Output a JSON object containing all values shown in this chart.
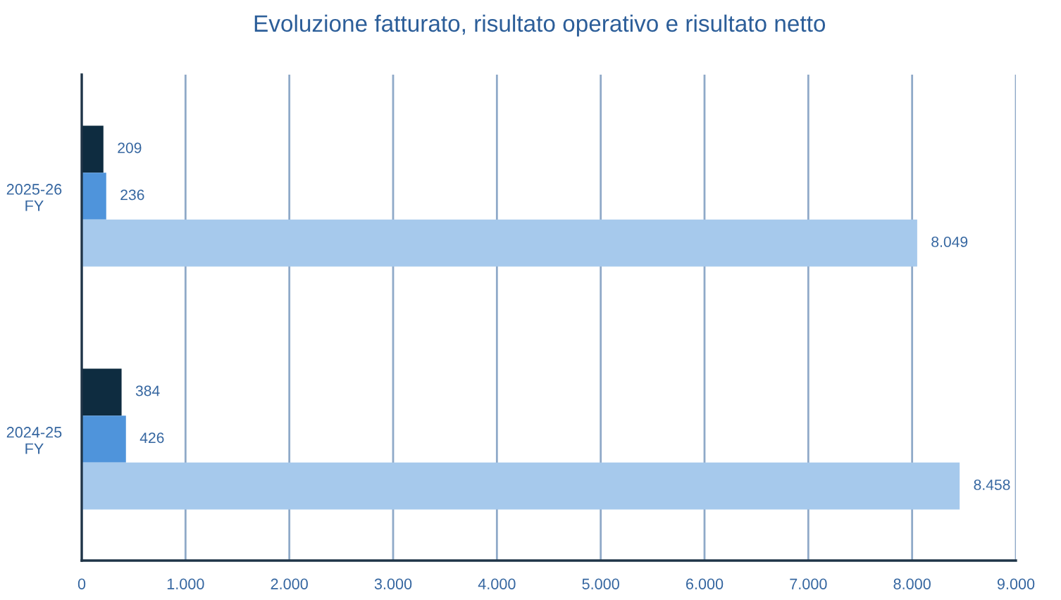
{
  "chart_data": {
    "type": "bar",
    "orientation": "horizontal",
    "title": "Evoluzione fatturato, risultato operativo e risultato netto",
    "categories": [
      "2025-26 FY",
      "2024-25 FY"
    ],
    "series": [
      {
        "color": "#0e2c40",
        "values": [
          209,
          384
        ],
        "value_labels": [
          "209",
          "384"
        ]
      },
      {
        "color": "#4f94db",
        "values": [
          236,
          426
        ],
        "value_labels": [
          "236",
          "426"
        ]
      },
      {
        "color": "#a6c9ec",
        "values": [
          8049,
          8458
        ],
        "value_labels": [
          "8.049",
          "8.458"
        ]
      }
    ],
    "xlim": [
      0,
      9000
    ],
    "xticks": [
      0,
      {
        "value": 1000,
        "label": "1.000"
      },
      {
        "value": 2000,
        "label": "2.000"
      },
      {
        "value": 3000,
        "label": "3.000"
      },
      {
        "value": 4000,
        "label": "4.000"
      },
      {
        "value": 5000,
        "label": "5.000"
      },
      {
        "value": 6000,
        "label": "6.000"
      },
      {
        "value": 7000,
        "label": "7.000"
      },
      {
        "value": 8000,
        "label": "8.000"
      },
      {
        "value": 9000,
        "label": "9.000"
      }
    ],
    "grid": "x"
  }
}
